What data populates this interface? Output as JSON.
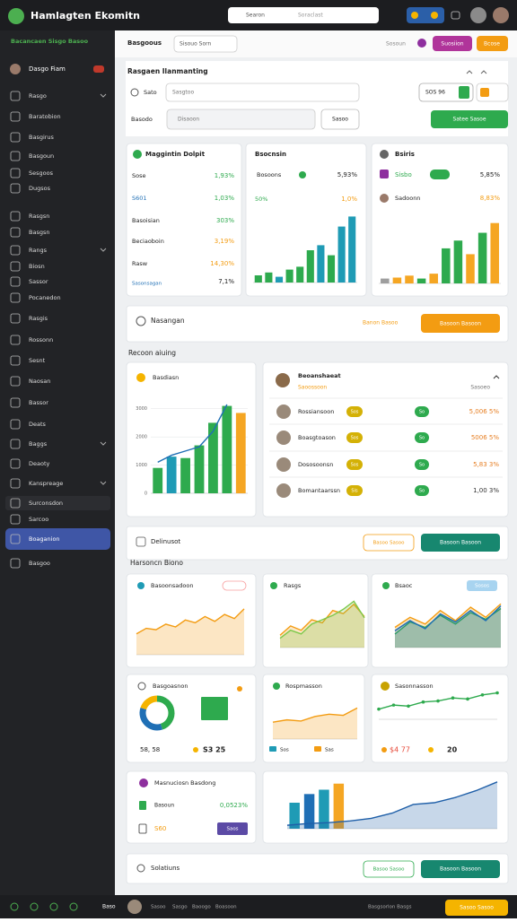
{
  "header": {
    "title": "Hamlagten Ekomitn",
    "search": "Searon",
    "search_hint": "Soraclast"
  },
  "sidebar": {
    "section": "Bacancaen Sisgo Basoo",
    "user": "Dasgo Fiam",
    "items": [
      "Rasgo",
      "Baratobion",
      "Basgirus",
      "Basgoun",
      "Sesgoos",
      "Dugsos",
      "Rasgsn",
      "Basgsn",
      "Rangs",
      "Biosn",
      "Sassor",
      "Pocanedon",
      "Rasgis",
      "Rossonn",
      "Sesnt",
      "Naosan",
      "Bassor",
      "Deats",
      "Baggs",
      "Deaoty",
      "Kanspreage",
      "Surconsdon",
      "Sarcoo",
      "Boaganion",
      "Basgoo"
    ],
    "active": 23
  },
  "toolbar": {
    "tabs": [
      "Basgoous",
      "Sisouo Sorn"
    ],
    "link": "Sosoun",
    "buttons": [
      "Suosiion",
      "Bcose"
    ]
  },
  "filter": {
    "title": "Rasgaen Ilanmanting",
    "fields": [
      {
        "label": "Sato",
        "value": "Sasgtoo"
      },
      {
        "label": "Basodo",
        "value": "Disaoon"
      }
    ],
    "extra": "SOS 96",
    "select": "Sasoo",
    "apply": "Satee Sasoe"
  },
  "cards": [
    {
      "title": "Maggintin Dolpit",
      "rows": [
        [
          "Sose",
          "1,93%"
        ],
        [
          "S601",
          "1,03%"
        ],
        [
          "Basoisian",
          "303%"
        ],
        [
          "Beciaoboin",
          "3,19%"
        ],
        [
          "Rasw",
          "14,30%"
        ]
      ],
      "foot": [
        "Sasonsagan",
        "7,1%"
      ]
    },
    {
      "title": "Bsocnsin",
      "rows": [
        [
          "Bosoons",
          "5,93%"
        ],
        [
          "50%",
          "1,0%"
        ]
      ],
      "chart": {
        "type": "bar",
        "values": [
          10,
          14,
          8,
          18,
          22,
          45,
          52,
          38,
          78,
          92
        ],
        "colors": [
          "#2eaa4e",
          "#2eaa4e",
          "#1f9bb5",
          "#2eaa4e",
          "#2eaa4e",
          "#2eaa4e",
          "#1f9bb5",
          "#2eaa4e",
          "#1f9bb5",
          "#1f9bb5"
        ],
        "ylim": [
          0,
          100
        ]
      }
    },
    {
      "title": "Bsiris",
      "rows": [
        [
          "Sisbo",
          "5,85%"
        ],
        [
          "Sadoonn",
          "8,83%"
        ]
      ],
      "chart": {
        "type": "bar",
        "values": [
          5,
          6,
          8,
          5,
          10,
          36,
          44,
          30,
          52,
          62
        ],
        "colors": [
          "#9e9e9e",
          "#f5a623",
          "#f5a623",
          "#2eaa4e",
          "#f5a623",
          "#2eaa4e",
          "#2eaa4e",
          "#f5a623",
          "#2eaa4e",
          "#f5a623"
        ],
        "ylim": [
          0,
          70
        ]
      }
    }
  ],
  "banner": {
    "title": "Nasangan",
    "link": "Banon Basoo",
    "button": "Basoon Basoon"
  },
  "section1": "Recoon aiuing",
  "sales": {
    "title": "Basdiasn",
    "chart": {
      "type": "combo",
      "values": [
        900,
        1300,
        1250,
        1700,
        2500,
        3100,
        2850
      ],
      "colors": [
        "#2eaa4e",
        "#1f9bb5",
        "#2eaa4e",
        "#2eaa4e",
        "#2eaa4e",
        "#2eaa4e",
        "#f5a623"
      ],
      "series": [
        {
          "color": "#1f6fb5",
          "values": [
            1100,
            1350,
            1500,
            1650,
            2200,
            3150,
            null
          ]
        }
      ],
      "ylim": [
        0,
        3500
      ],
      "yticks": [
        0,
        1000,
        2000,
        3000
      ]
    }
  },
  "team": {
    "title": "Beoanshaeat",
    "subtitle": "Saoossoon",
    "right": "Sasoeo",
    "rows": [
      {
        "name": "Rossiansoon",
        "tag": "Sos",
        "tag2": "So",
        "value": "5,006 5%"
      },
      {
        "name": "Boasgtoason",
        "tag": "Sos",
        "tag2": "So",
        "value": "5006 5%"
      },
      {
        "name": "Dososoonsn",
        "tag": "Sos",
        "tag2": "So",
        "value": "5,83 3%"
      },
      {
        "name": "Bomantaarssn",
        "tag": "Sis",
        "tag2": "So",
        "value": "1,00 3%"
      }
    ]
  },
  "delivery": {
    "title": "Delinusot",
    "buttons": [
      "Basoo Sasoo",
      "Basoon Basoon"
    ]
  },
  "section2": "Harsoncn Biono",
  "charts": [
    {
      "title": "Basoonsadoon",
      "type": "line",
      "fill": true,
      "series": [
        {
          "color": "#f39c12",
          "values": [
            30,
            38,
            36,
            44,
            40,
            50,
            46,
            55,
            48,
            58,
            52,
            66
          ]
        }
      ],
      "ylim": [
        0,
        80
      ]
    },
    {
      "title": "Rasgs",
      "type": "line",
      "fill": true,
      "series": [
        {
          "color": "#f39c12",
          "values": [
            20,
            35,
            28,
            45,
            40,
            60,
            55,
            70,
            50
          ]
        },
        {
          "color": "#7cc84a",
          "values": [
            15,
            28,
            22,
            38,
            45,
            52,
            62,
            75,
            48
          ]
        }
      ],
      "ylim": [
        0,
        90
      ]
    },
    {
      "title": "Bsaoc",
      "badge": "Sosos",
      "type": "line",
      "fill": true,
      "series": [
        {
          "color": "#f39c12",
          "values": [
            30,
            45,
            35,
            55,
            40,
            60,
            45,
            65
          ]
        },
        {
          "color": "#2eaa4e",
          "values": [
            20,
            38,
            30,
            48,
            35,
            52,
            42,
            58
          ]
        },
        {
          "color": "#1f6fb5",
          "values": [
            25,
            40,
            28,
            50,
            38,
            55,
            40,
            62
          ]
        }
      ],
      "ylim": [
        0,
        80
      ]
    },
    {
      "title": "Basgoasnon",
      "type": "pie",
      "values": [
        45,
        35,
        20
      ],
      "colors": [
        "#2eaa4e",
        "#1f6fb5",
        "#f5b400"
      ],
      "stats": [
        "58, 58",
        "S3 25"
      ]
    },
    {
      "title": "Rospmasson",
      "type": "line",
      "fill": true,
      "series": [
        {
          "color": "#f39c12",
          "values": [
            30,
            34,
            32,
            40,
            44,
            42,
            55
          ]
        }
      ],
      "ylim": [
        0,
        70
      ],
      "stats": [
        "Sos",
        "Sas"
      ]
    },
    {
      "title": "Sasonnasson",
      "type": "line",
      "markers": true,
      "series": [
        {
          "color": "#2eaa4e",
          "values": [
            20,
            28,
            26,
            34,
            36,
            42,
            40,
            48,
            52
          ]
        }
      ],
      "ylim": [
        0,
        60
      ],
      "stats": [
        "$4 77",
        "20"
      ]
    },
    {
      "title": "Masnuciosn Basdong",
      "rows": [
        [
          "Basoun",
          "0,0523%"
        ],
        [
          "S60",
          "Saos"
        ]
      ]
    },
    {
      "type": "combo",
      "values": [
        30,
        40,
        45,
        52
      ],
      "colors": [
        "#1f9bb5",
        "#1f6fb5",
        "#1f9bb5",
        "#f5a623"
      ],
      "fill": true,
      "series": [
        {
          "color": "#1f5fa8",
          "values": [
            4,
            6,
            7,
            9,
            12,
            18,
            28,
            30,
            36,
            44,
            54
          ]
        }
      ],
      "ylim": [
        0,
        60
      ]
    }
  ],
  "solutions": {
    "title": "Solatiuns",
    "buttons": [
      "Basoo Sasoo",
      "Basoon Basoon"
    ]
  },
  "bottom": {
    "user": "Baso",
    "links": [
      "Sasoo",
      "Sasgo",
      "Baoogo",
      "Boasoon"
    ],
    "right": "Basgsorlon Basgs",
    "button": "Sasoo Sasoo"
  }
}
